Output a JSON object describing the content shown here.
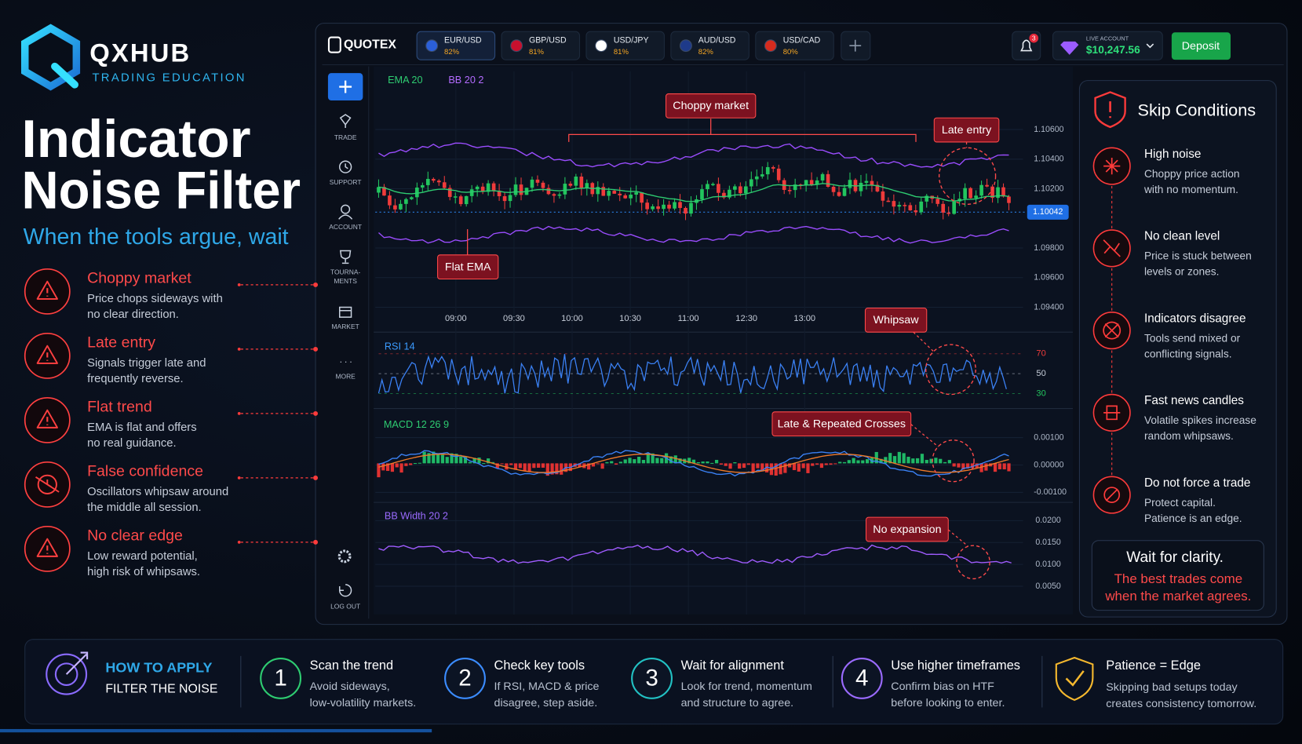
{
  "brand": {
    "name": "QXHUB",
    "tagline": "TRADING EDUCATION"
  },
  "headline": {
    "title_lines": [
      "Indicator",
      "Noise Filter"
    ],
    "subtitle": "When the tools argue, wait"
  },
  "problems": [
    {
      "title": "Choppy market",
      "lines": [
        "Price chops sideways with",
        "no clear direction."
      ]
    },
    {
      "title": "Late entry",
      "lines": [
        "Signals trigger late and",
        "frequently reverse."
      ]
    },
    {
      "title": "Flat trend",
      "lines": [
        "EMA is flat and offers",
        "no real guidance."
      ]
    },
    {
      "title": "False confidence",
      "lines": [
        "Oscillators whipsaw around",
        "the middle all session."
      ]
    },
    {
      "title": "No clear edge",
      "lines": [
        "Low reward potential,",
        "high risk of whipsaws."
      ]
    }
  ],
  "platform": {
    "logo": "QUOTEX",
    "pairs": [
      {
        "name": "EUR/USD",
        "payout": "82%"
      },
      {
        "name": "GBP/USD",
        "payout": "81%"
      },
      {
        "name": "USD/JPY",
        "payout": "81%"
      },
      {
        "name": "AUD/USD",
        "payout": "82%"
      },
      {
        "name": "USD/CAD",
        "payout": "80%"
      }
    ],
    "notifications": "3",
    "account_label": "LIVE ACCOUNT",
    "balance": "$10,247.56",
    "deposit": "Deposit",
    "sidebar": [
      {
        "lines": [
          "TRADE"
        ]
      },
      {
        "lines": [
          "SUPPORT"
        ]
      },
      {
        "lines": [
          "ACCOUNT"
        ]
      },
      {
        "lines": [
          "TOURNA-",
          "MENTS"
        ]
      },
      {
        "lines": [
          "MARKET"
        ]
      },
      {
        "lines": [
          "MORE"
        ]
      }
    ],
    "logout": "LOG OUT"
  },
  "price_chart": {
    "indicators": [
      "EMA 20",
      "BB 20 2"
    ],
    "yticks": [
      {
        "value": 1.106,
        "label": "1.10600"
      },
      {
        "value": 1.104,
        "label": "1.10400"
      },
      {
        "value": 1.102,
        "label": "1.10200"
      },
      {
        "value": 1.098,
        "label": "1.09800"
      },
      {
        "value": 1.096,
        "label": "1.09600"
      },
      {
        "value": 1.094,
        "label": "1.09400"
      }
    ],
    "current_price": {
      "value": 1.10042,
      "label": "1.10042"
    },
    "xticks": [
      "09:00",
      "09:30",
      "10:00",
      "10:30",
      "11:00",
      "12:30",
      "13:00"
    ]
  },
  "rsi": {
    "label": "RSI 14",
    "yticks": [
      70,
      50,
      30
    ]
  },
  "macd": {
    "label": "MACD 12 26 9",
    "yticks": [
      {
        "value": 0.001,
        "label": "0.00100"
      },
      {
        "value": 0,
        "label": "0.00000"
      },
      {
        "value": -0.001,
        "label": "-0.00100"
      }
    ]
  },
  "bb_width": {
    "label": "BB Width 20 2",
    "yticks": [
      {
        "value": 0.02,
        "label": "0.0200"
      },
      {
        "value": 0.015,
        "label": "0.0150"
      },
      {
        "value": 0.01,
        "label": "0.0100"
      },
      {
        "value": 0.005,
        "label": "0.0050"
      }
    ]
  },
  "annotations": [
    "Choppy market",
    "Late entry",
    "Flat EMA",
    "Whipsaw",
    "Late & Repeated Crosses",
    "No expansion"
  ],
  "skip": {
    "title": "Skip Conditions",
    "items": [
      {
        "title": "High noise",
        "lines": [
          "Choppy price action",
          "with no momentum."
        ]
      },
      {
        "title": "No clean level",
        "lines": [
          "Price is stuck between",
          "levels or zones."
        ]
      },
      {
        "title": "Indicators disagree",
        "lines": [
          "Tools send mixed or",
          "conflicting signals."
        ]
      },
      {
        "title": "Fast news candles",
        "lines": [
          "Volatile spikes increase",
          "random whipsaws."
        ]
      },
      {
        "title": "Do not force a trade",
        "lines": [
          "Protect capital.",
          "Patience is an edge."
        ]
      }
    ],
    "closing": {
      "title": "Wait for clarity.",
      "lines": [
        "The best trades come",
        "when the market agrees."
      ]
    }
  },
  "footer": {
    "heading": [
      "HOW TO APPLY",
      "FILTER THE NOISE"
    ],
    "steps": [
      {
        "number": 1,
        "title": "Scan the trend",
        "lines": [
          "Avoid sideways,",
          "low-volatility markets."
        ]
      },
      {
        "number": 2,
        "title": "Check key tools",
        "lines": [
          "If RSI, MACD & price",
          "disagree, step aside."
        ]
      },
      {
        "number": 3,
        "title": "Wait for alignment",
        "lines": [
          "Look for trend, momentum",
          "and structure to agree."
        ]
      },
      {
        "number": 4,
        "title": "Use higher timeframes",
        "lines": [
          "Confirm bias on HTF",
          "before looking to enter."
        ]
      }
    ],
    "final": {
      "title": "Patience = Edge",
      "lines": [
        "Skipping bad setups today",
        "creates consistency tomorrow."
      ]
    }
  }
}
